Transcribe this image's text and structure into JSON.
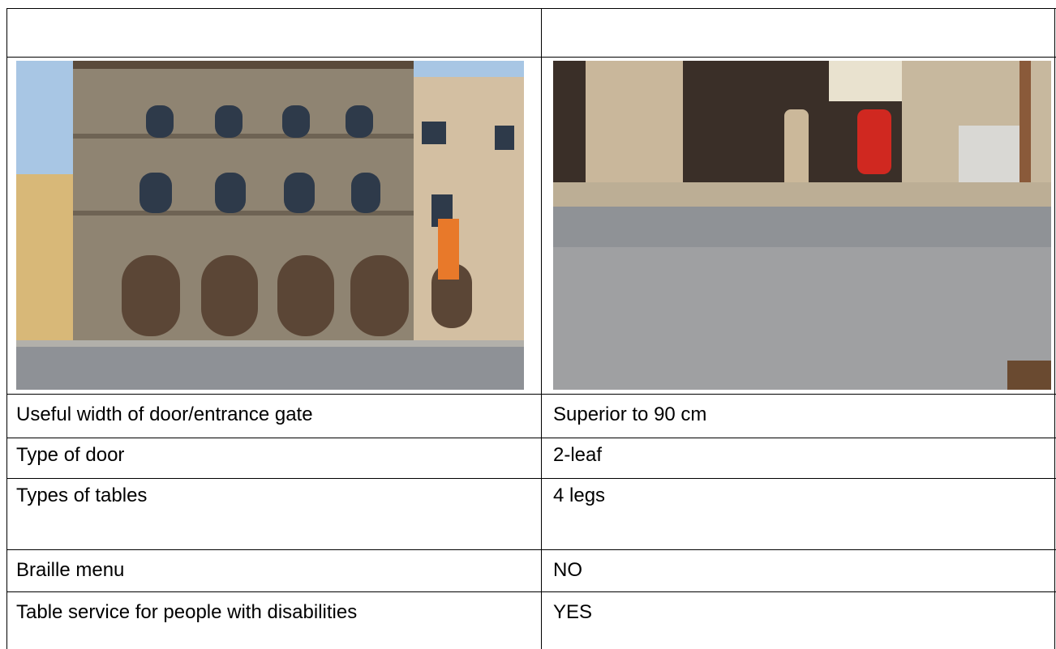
{
  "table": {
    "rows": [
      [
        "Useful width of door/entrance gate",
        "Superior to 90 cm"
      ],
      [
        "Type of door",
        "2-leaf"
      ],
      [
        "Types of tables",
        "4 legs"
      ],
      [
        "Braille menu",
        "NO"
      ],
      [
        "Table service for people with disabilities",
        "YES"
      ]
    ]
  }
}
